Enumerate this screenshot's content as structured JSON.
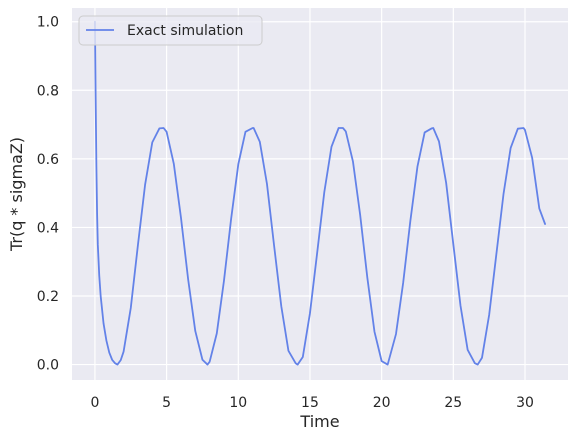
{
  "chart_data": {
    "type": "line",
    "xlabel": "Time",
    "ylabel": "Tr(q * sigmaZ)",
    "xlim": [
      -1.6,
      33.0
    ],
    "ylim": [
      -0.045,
      1.04
    ],
    "xticks": [
      0,
      5,
      10,
      15,
      20,
      25,
      30
    ],
    "yticks": [
      0.0,
      0.2,
      0.4,
      0.6,
      0.8,
      1.0
    ],
    "xtick_labels": [
      "0",
      "5",
      "10",
      "15",
      "20",
      "25",
      "30"
    ],
    "ytick_labels": [
      "0.0",
      "0.2",
      "0.4",
      "0.6",
      "0.8",
      "1.0"
    ],
    "grid": true,
    "legend_position": "top-left",
    "colors": {
      "background": "#eaeaf2",
      "grid": "#ffffff",
      "line": "#6382e8"
    },
    "series": [
      {
        "name": "Exact simulation",
        "x": [
          0,
          0.05,
          0.1,
          0.15,
          0.2,
          0.3,
          0.4,
          0.6,
          0.8,
          1.0,
          1.2,
          1.4,
          1.57,
          1.8,
          2.0,
          2.5,
          3.0,
          3.5,
          4.0,
          4.5,
          4.79,
          5.0,
          5.5,
          6.0,
          6.5,
          7.0,
          7.5,
          7.85,
          8.0,
          8.5,
          9.0,
          9.5,
          10.0,
          10.5,
          11.0,
          11.07,
          11.5,
          12.0,
          12.5,
          13.0,
          13.5,
          14.0,
          14.14,
          14.5,
          15.0,
          15.5,
          16.0,
          16.5,
          17.0,
          17.3,
          17.5,
          18.0,
          18.5,
          19.0,
          19.5,
          20.0,
          20.42,
          21.0,
          21.5,
          22.0,
          22.5,
          23.0,
          23.5,
          23.6,
          24.0,
          24.5,
          25.0,
          25.5,
          26.0,
          26.5,
          26.7,
          27.0,
          27.5,
          28.0,
          28.5,
          29.0,
          29.5,
          29.9,
          30.0,
          30.5,
          31.0,
          31.4
        ],
        "y": [
          1.0,
          0.78,
          0.58,
          0.44,
          0.35,
          0.26,
          0.2,
          0.12,
          0.07,
          0.035,
          0.014,
          0.004,
          0.0,
          0.013,
          0.038,
          0.165,
          0.349,
          0.525,
          0.648,
          0.689,
          0.69,
          0.679,
          0.586,
          0.429,
          0.249,
          0.098,
          0.014,
          0.0,
          0.008,
          0.091,
          0.244,
          0.425,
          0.584,
          0.679,
          0.69,
          0.69,
          0.65,
          0.527,
          0.346,
          0.17,
          0.04,
          0.004,
          0.0,
          0.022,
          0.15,
          0.325,
          0.503,
          0.635,
          0.69,
          0.69,
          0.68,
          0.592,
          0.437,
          0.254,
          0.096,
          0.01,
          0.0,
          0.089,
          0.238,
          0.418,
          0.578,
          0.677,
          0.689,
          0.69,
          0.651,
          0.53,
          0.351,
          0.172,
          0.043,
          0.004,
          0.0,
          0.02,
          0.145,
          0.321,
          0.497,
          0.632,
          0.688,
          0.69,
          0.684,
          0.603,
          0.455,
          0.41
        ]
      }
    ]
  }
}
